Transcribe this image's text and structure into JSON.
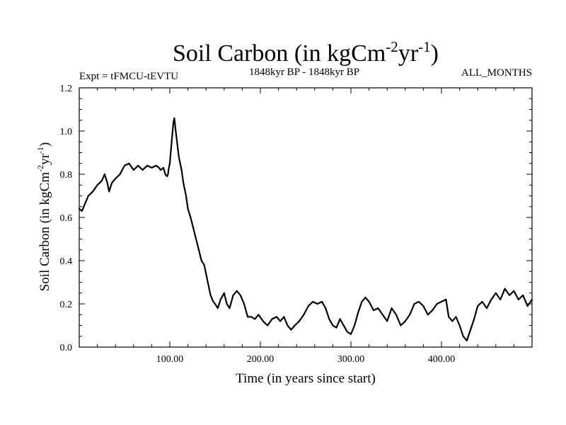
{
  "chart_data": {
    "type": "line",
    "title": {
      "prefix": "Soil Carbon (in kgCm",
      "sup1": "-2",
      "mid": "yr",
      "sup2": "-1",
      "suffix": ")"
    },
    "subtitle_left": "Expt = tFMCU-tEVTU",
    "subtitle_center": "1848kyr BP - 1848kyr BP",
    "subtitle_right": "ALL_MONTHS",
    "xlabel": "Time (in years since start)",
    "ylabel": {
      "prefix": "Soil Carbon (in kgCm",
      "sup1": "-2",
      "mid": "yr",
      "sup2": "-1",
      "suffix": ")"
    },
    "xlim": [
      0,
      500
    ],
    "ylim": [
      0,
      1.2
    ],
    "xticks": [
      100,
      200,
      300,
      400
    ],
    "xtick_labels": [
      "100.00",
      "200.00",
      "300.00",
      "400.00"
    ],
    "yticks": [
      0,
      0.2,
      0.4,
      0.6,
      0.8,
      1.0,
      1.2
    ],
    "ytick_labels": [
      "0.0",
      "0.2",
      "0.4",
      "0.6",
      "0.8",
      "1.0",
      "1.2"
    ],
    "grid": false,
    "series": [
      {
        "name": "Soil Carbon",
        "color": "#000000",
        "x": [
          0,
          3,
          6,
          10,
          15,
          20,
          25,
          28,
          31,
          33,
          36,
          40,
          45,
          50,
          55,
          60,
          65,
          70,
          75,
          80,
          85,
          88,
          90,
          93,
          95,
          97,
          98,
          99,
          100,
          102,
          104,
          105,
          106,
          108,
          110,
          113,
          115,
          118,
          120,
          123,
          126,
          129,
          132,
          135,
          138,
          141,
          143,
          145,
          148,
          150,
          153,
          156,
          160,
          163,
          166,
          170,
          174,
          178,
          182,
          186,
          190,
          194,
          198,
          203,
          208,
          213,
          218,
          222,
          226,
          230,
          234,
          238,
          243,
          248,
          253,
          258,
          263,
          268,
          272,
          276,
          280,
          284,
          288,
          292,
          296,
          300,
          304,
          308,
          312,
          316,
          320,
          325,
          330,
          335,
          340,
          345,
          350,
          355,
          360,
          365,
          370,
          375,
          380,
          385,
          390,
          395,
          400,
          405,
          408,
          412,
          416,
          420,
          424,
          428,
          432,
          436,
          440,
          445,
          450,
          455,
          460,
          465,
          470,
          475,
          480,
          485,
          490,
          495,
          500
        ],
        "values": [
          0.64,
          0.63,
          0.66,
          0.7,
          0.72,
          0.75,
          0.77,
          0.8,
          0.76,
          0.72,
          0.76,
          0.78,
          0.8,
          0.84,
          0.85,
          0.82,
          0.84,
          0.82,
          0.84,
          0.83,
          0.84,
          0.83,
          0.82,
          0.83,
          0.8,
          0.79,
          0.8,
          0.83,
          0.85,
          0.95,
          1.04,
          1.06,
          1.02,
          0.95,
          0.88,
          0.82,
          0.76,
          0.7,
          0.64,
          0.6,
          0.55,
          0.5,
          0.45,
          0.4,
          0.38,
          0.32,
          0.28,
          0.24,
          0.21,
          0.2,
          0.18,
          0.22,
          0.25,
          0.2,
          0.18,
          0.24,
          0.26,
          0.24,
          0.2,
          0.14,
          0.14,
          0.13,
          0.15,
          0.12,
          0.1,
          0.13,
          0.14,
          0.12,
          0.14,
          0.1,
          0.08,
          0.1,
          0.12,
          0.15,
          0.19,
          0.21,
          0.2,
          0.21,
          0.18,
          0.13,
          0.1,
          0.09,
          0.13,
          0.1,
          0.07,
          0.06,
          0.1,
          0.16,
          0.21,
          0.23,
          0.21,
          0.17,
          0.18,
          0.15,
          0.12,
          0.18,
          0.15,
          0.1,
          0.12,
          0.15,
          0.2,
          0.21,
          0.19,
          0.15,
          0.17,
          0.2,
          0.21,
          0.22,
          0.14,
          0.12,
          0.14,
          0.1,
          0.05,
          0.03,
          0.08,
          0.13,
          0.19,
          0.21,
          0.18,
          0.22,
          0.25,
          0.22,
          0.27,
          0.24,
          0.26,
          0.22,
          0.24,
          0.19,
          0.22
        ]
      }
    ]
  }
}
